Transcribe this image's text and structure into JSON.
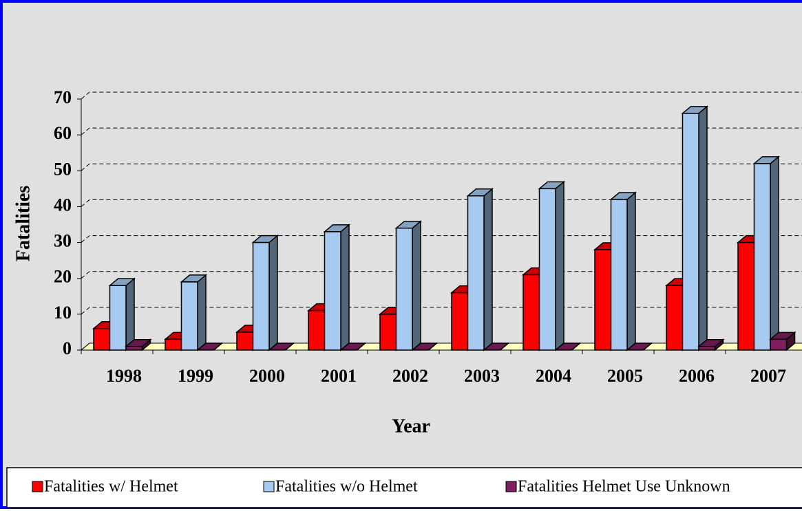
{
  "chart_data": {
    "type": "bar3d",
    "xlabel": "Year",
    "ylabel": "Fatalities",
    "categories": [
      "1998",
      "1999",
      "2000",
      "2001",
      "2002",
      "2003",
      "2004",
      "2005",
      "2006",
      "2007"
    ],
    "series": [
      {
        "name": "Fatalities w/ Helmet",
        "color": "#ff0000",
        "values": [
          6,
          3,
          5,
          11,
          10,
          16,
          21,
          28,
          18,
          30
        ]
      },
      {
        "name": "Fatalities w/o Helmet",
        "color": "#a6caf0",
        "values": [
          18,
          19,
          30,
          33,
          34,
          43,
          45,
          42,
          66,
          52
        ]
      },
      {
        "name": "Fatalities Helmet Use Unknown",
        "color": "#7f1f5f",
        "values": [
          1,
          0,
          0,
          0,
          0,
          0,
          0,
          0,
          1,
          3
        ]
      }
    ],
    "ylim": [
      0,
      70
    ],
    "yticks": [
      0,
      10,
      20,
      30,
      40,
      50,
      60,
      70
    ],
    "grid": true,
    "legend": "bottom"
  }
}
